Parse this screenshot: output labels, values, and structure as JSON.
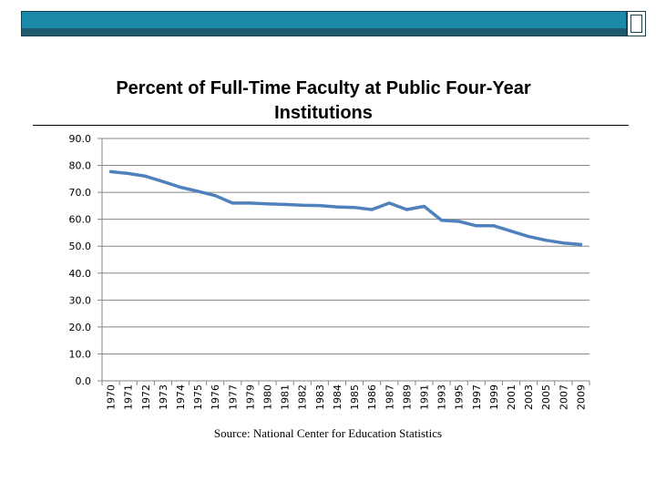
{
  "colors": {
    "accent": "#1a8aa8",
    "accent_dark": "#1f5a6e",
    "series": "#4f81bd",
    "grid": "#868686"
  },
  "source_note": "Source: National Center for Education Statistics",
  "chart_data": {
    "type": "line",
    "title": "Percent of Full-Time Faculty at Public Four-Year Institutions",
    "xlabel": "",
    "ylabel": "",
    "ylim": [
      0,
      90
    ],
    "y_ticks": [
      "90.0",
      "80.0",
      "70.0",
      "60.0",
      "50.0",
      "40.0",
      "30.0",
      "20.0",
      "10.0",
      "0.0"
    ],
    "categories": [
      "1970",
      "1971",
      "1972",
      "1973",
      "1974",
      "1975",
      "1976",
      "1977",
      "1979",
      "1980",
      "1981",
      "1982",
      "1983",
      "1984",
      "1985",
      "1986",
      "1987",
      "1989",
      "1991",
      "1993",
      "1995",
      "1997",
      "1999",
      "2001",
      "2003",
      "2005",
      "2007",
      "2009"
    ],
    "series": [
      {
        "name": "Percent Full-Time Faculty",
        "values": [
          77.7,
          77.0,
          76.0,
          74.0,
          71.9,
          70.4,
          68.8,
          66.0,
          66.0,
          65.7,
          65.5,
          65.2,
          65.1,
          64.6,
          64.4,
          63.6,
          66.0,
          63.6,
          64.8,
          59.6,
          59.2,
          57.6,
          57.6,
          55.6,
          53.6,
          52.2,
          51.2,
          50.6
        ]
      }
    ],
    "grid": true,
    "legend": "none"
  }
}
